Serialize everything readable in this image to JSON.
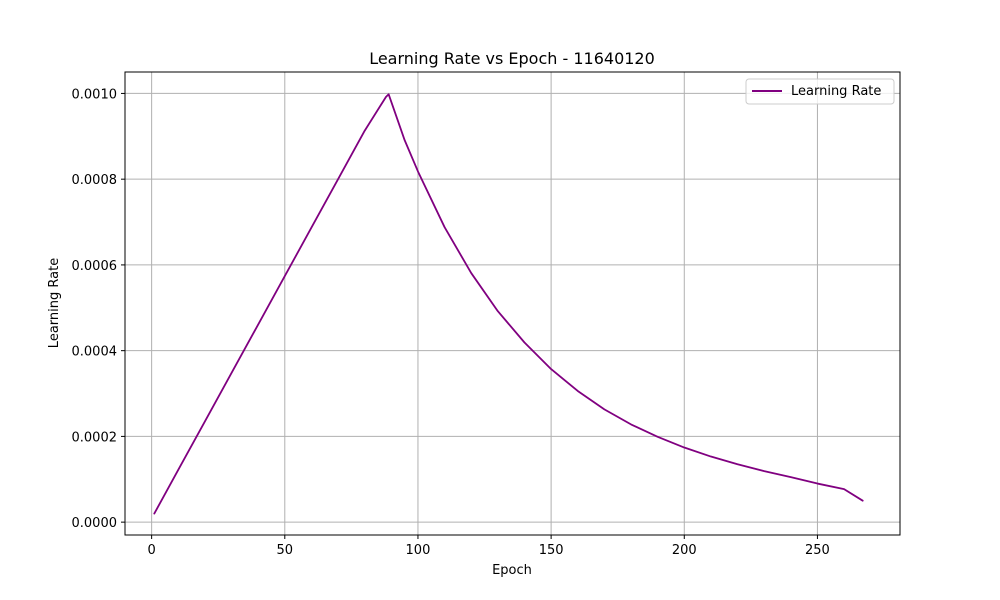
{
  "chart_data": {
    "type": "line",
    "title": "Learning Rate vs Epoch - 11640120",
    "xlabel": "Epoch",
    "ylabel": "Learning Rate",
    "xlim": [
      -10,
      281
    ],
    "ylim": [
      -3e-05,
      0.00105
    ],
    "xticks": [
      0,
      50,
      100,
      150,
      200,
      250
    ],
    "xtick_labels": [
      "0",
      "50",
      "100",
      "150",
      "200",
      "250"
    ],
    "yticks": [
      0.0,
      0.0002,
      0.0004,
      0.0006,
      0.0008,
      0.001
    ],
    "ytick_labels": [
      "0.0000",
      "0.0002",
      "0.0004",
      "0.0006",
      "0.0008",
      "0.0010"
    ],
    "grid": true,
    "legend_position": "top-right",
    "series": [
      {
        "name": "Learning Rate",
        "color": "#800080",
        "x": [
          1,
          10,
          20,
          30,
          40,
          50,
          60,
          70,
          80,
          88,
          89,
          95,
          100,
          110,
          120,
          130,
          140,
          150,
          160,
          170,
          180,
          190,
          200,
          210,
          220,
          230,
          240,
          250,
          260,
          267
        ],
        "y": [
          2e-05,
          0.000122,
          0.000235,
          0.000348,
          0.000461,
          0.000574,
          0.000687,
          0.0008,
          0.000913,
          0.000992,
          0.000998,
          0.000891,
          0.000818,
          0.000688,
          0.000581,
          0.000492,
          0.000419,
          0.000357,
          0.000306,
          0.000263,
          0.000228,
          0.000199,
          0.000174,
          0.000153,
          0.000135,
          0.000119,
          0.000105,
          9e-05,
          7.7e-05,
          5e-05
        ]
      }
    ]
  }
}
